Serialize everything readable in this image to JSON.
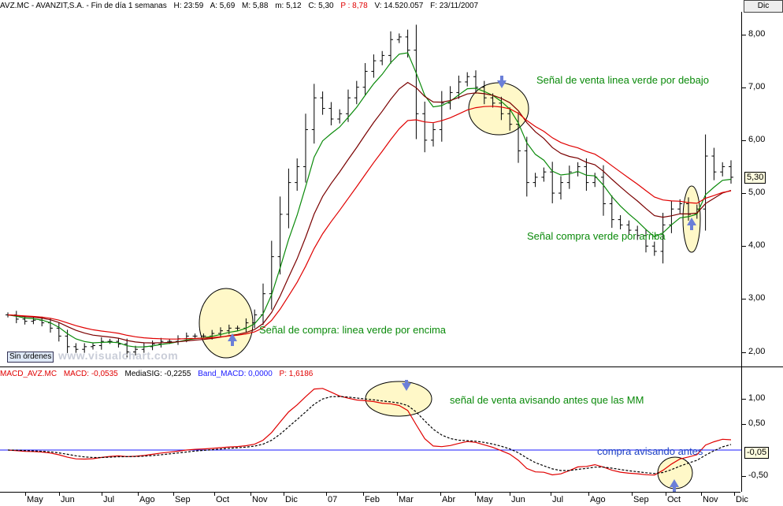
{
  "header": {
    "symbol_info": "AVZ.MC - AVANZIT,S.A. - Fin de día 1 semanas",
    "h": "H: 23:59",
    "a": "A: 5,69",
    "m": "M: 5,88",
    "min": "m: 5,12",
    "c": "C: 5,30",
    "p": "P : 8,78",
    "v": "V: 14.520.057",
    "f": "F: 23/11/2007",
    "dic_button": "Dic"
  },
  "price_panel": {
    "y_ticks": [
      "8,00",
      "7,00",
      "6,00",
      "5,00",
      "4,00",
      "3,00",
      "2,00"
    ],
    "current_value": "5,30",
    "sin_ordenes": "Sin órdenes",
    "watermark": "www.visualchart.com",
    "annotations": {
      "venta": "Señal de venta linea verde por debajo",
      "compra_verde": "Señal compra verde por arriba",
      "compra_encima": "Señal de compra: linea verde por encima"
    }
  },
  "macd_panel": {
    "header": {
      "name": "MACD_AVZ.MC",
      "macd": "MACD: -0,0535",
      "media": "MediaSIG: -0,2255",
      "band": "Band_MACD: 0,0000",
      "p": "P: 1,6186"
    },
    "y_ticks": [
      "1,00",
      "0,50",
      "-0,50"
    ],
    "current_value": "-0,05",
    "annotations": {
      "venta": "señal de venta avisando antes que las MM",
      "compra": "compra avisando antes"
    }
  },
  "x_axis": [
    "May",
    "Jun",
    "Jul",
    "Ago",
    "Sep",
    "Oct",
    "Nov",
    "Dic",
    "07",
    "Feb",
    "Mar",
    "Abr",
    "May",
    "Jun",
    "Jul",
    "Ago",
    "Sep",
    "Oct",
    "Nov",
    "Dic"
  ],
  "colors": {
    "bars": "#000000",
    "ma_green": "#0a8a0a",
    "ma_dark_red": "#7a0000",
    "ma_red": "#e00000",
    "macd_line": "#e00000",
    "signal_line": "#000000",
    "zero_band": "#1a1aff",
    "highlight": "#fff8c8"
  },
  "chart_data": {
    "type": "bar",
    "price_closes": [
      2.7,
      2.62,
      2.58,
      2.6,
      2.55,
      2.45,
      2.3,
      2.1,
      2.05,
      2.1,
      2.12,
      2.2,
      2.2,
      2.15,
      2.0,
      2.05,
      2.1,
      2.15,
      2.2,
      2.2,
      2.25,
      2.3,
      2.3,
      2.3,
      2.35,
      2.4,
      2.45,
      2.45,
      2.55,
      2.7,
      3.1,
      3.8,
      4.6,
      5.2,
      5.5,
      6.2,
      6.8,
      6.6,
      6.4,
      6.5,
      6.8,
      7.0,
      7.3,
      7.5,
      7.6,
      7.9,
      7.95,
      7.7,
      6.5,
      6.0,
      6.2,
      6.7,
      6.9,
      7.1,
      7.2,
      7.0,
      6.8,
      6.7,
      6.5,
      6.3,
      5.8,
      5.2,
      5.3,
      5.4,
      5.0,
      5.2,
      5.4,
      5.5,
      5.2,
      5.3,
      4.8,
      4.5,
      4.4,
      4.3,
      4.2,
      4.0,
      3.9,
      4.4,
      4.7,
      4.8,
      4.6,
      4.7,
      5.7,
      5.4,
      5.5,
      5.3
    ],
    "price_range": [
      1.8,
      8.35
    ],
    "macd_range": [
      -0.75,
      1.3
    ]
  }
}
